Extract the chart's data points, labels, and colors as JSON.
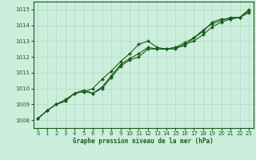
{
  "line1_x": [
    0,
    1,
    2,
    3,
    4,
    5,
    6,
    7,
    8,
    9,
    10,
    11,
    12,
    13,
    14,
    15,
    16,
    17,
    18,
    19,
    20,
    21,
    22,
    23
  ],
  "line1_y": [
    1008.1,
    1008.6,
    1009.0,
    1009.2,
    1009.7,
    1009.8,
    1010.0,
    1010.6,
    1011.1,
    1011.7,
    1012.2,
    1012.8,
    1013.0,
    1012.6,
    1012.5,
    1012.6,
    1012.7,
    1013.2,
    1013.6,
    1014.2,
    1014.4,
    1014.4,
    1014.5,
    1015.0
  ],
  "line2_x": [
    0,
    1,
    2,
    3,
    4,
    5,
    6,
    7,
    8,
    9,
    10,
    11,
    12,
    13,
    14,
    15,
    16,
    17,
    18,
    19,
    20,
    21,
    22,
    23
  ],
  "line2_y": [
    1008.1,
    1008.6,
    1009.0,
    1009.3,
    1009.7,
    1009.9,
    1009.7,
    1010.1,
    1010.8,
    1011.5,
    1011.9,
    1012.2,
    1012.6,
    1012.5,
    1012.5,
    1012.6,
    1012.9,
    1013.2,
    1013.7,
    1014.1,
    1014.3,
    1014.5,
    1014.5,
    1014.8
  ],
  "line3_x": [
    0,
    1,
    2,
    3,
    4,
    5,
    6,
    7,
    8,
    9,
    10,
    11,
    12,
    13,
    14,
    15,
    16,
    17,
    18,
    19,
    20,
    21,
    22,
    23
  ],
  "line3_y": [
    1008.1,
    1008.6,
    1009.0,
    1009.2,
    1009.7,
    1009.8,
    1009.7,
    1010.0,
    1010.7,
    1011.4,
    1011.8,
    1012.0,
    1012.5,
    1012.5,
    1012.5,
    1012.5,
    1012.8,
    1013.0,
    1013.4,
    1013.9,
    1014.2,
    1014.4,
    1014.5,
    1014.9
  ],
  "line_color": "#1a5c1a",
  "bg_color": "#cceedd",
  "grid_color": "#b0d8c8",
  "xlabel": "Graphe pression niveau de la mer (hPa)",
  "ylim_min": 1007.5,
  "ylim_max": 1015.5,
  "xlim_min": -0.5,
  "xlim_max": 23.5,
  "yticks": [
    1008,
    1009,
    1010,
    1011,
    1012,
    1013,
    1014,
    1015
  ],
  "xticks": [
    0,
    1,
    2,
    3,
    4,
    5,
    6,
    7,
    8,
    9,
    10,
    11,
    12,
    13,
    14,
    15,
    16,
    17,
    18,
    19,
    20,
    21,
    22,
    23
  ]
}
